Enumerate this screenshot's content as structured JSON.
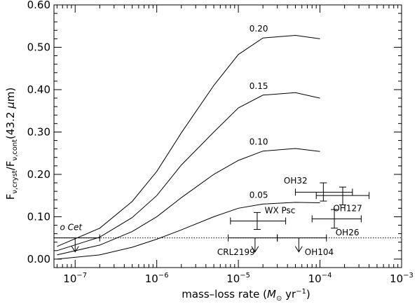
{
  "chart_data": {
    "type": "line",
    "xlabel": "mass–loss rate",
    "xlabel_unit_open": "(",
    "xlabel_unit_msun": "M",
    "xlabel_unit_sun": "⊙",
    "xlabel_unit_rest": " yr",
    "xlabel_unit_exp": "−1",
    "xlabel_unit_close": ")",
    "ylabel_main": "F",
    "ylabel_nu": "ν",
    "ylabel_cryst": ",cryst",
    "ylabel_slash": "/F",
    "ylabel_cont": ",cont",
    "ylabel_paren": "(43.2 ",
    "ylabel_mu": "μ",
    "ylabel_m": "m)",
    "x_scale": "log",
    "xlim": [
      5.5e-08,
      0.001
    ],
    "ylim": [
      -0.02,
      0.6
    ],
    "x_ticks": [
      {
        "value": 1e-07,
        "base": "10",
        "exp": "−7"
      },
      {
        "value": 1e-06,
        "base": "10",
        "exp": "−6"
      },
      {
        "value": 1e-05,
        "base": "10",
        "exp": "−5"
      },
      {
        "value": 0.0001,
        "base": "10",
        "exp": "−4"
      },
      {
        "value": 0.001,
        "base": "10",
        "exp": "−3"
      }
    ],
    "y_ticks": [
      0.0,
      0.1,
      0.2,
      0.3,
      0.4,
      0.5,
      0.6
    ],
    "y_tick_labels": [
      "0.00",
      "0.10",
      "0.20",
      "0.30",
      "0.40",
      "0.50",
      "0.60"
    ],
    "series": [
      {
        "name": "0.05",
        "x": [
          6e-08,
          2e-07,
          5e-07,
          1e-06,
          2e-06,
          5e-06,
          1e-05,
          2e-05,
          5e-05,
          0.0001
        ],
        "y": [
          0.0,
          0.01,
          0.028,
          0.047,
          0.069,
          0.1,
          0.12,
          0.13,
          0.134,
          0.133
        ]
      },
      {
        "name": "0.10",
        "x": [
          6e-08,
          2e-07,
          5e-07,
          1e-06,
          2e-06,
          5e-06,
          1e-05,
          2e-05,
          5e-05,
          0.0001
        ],
        "y": [
          0.01,
          0.033,
          0.065,
          0.1,
          0.145,
          0.2,
          0.233,
          0.255,
          0.261,
          0.254
        ]
      },
      {
        "name": "0.15",
        "x": [
          6e-08,
          2e-07,
          5e-07,
          1e-06,
          2e-06,
          5e-06,
          1e-05,
          2e-05,
          5e-05,
          0.0001
        ],
        "y": [
          0.02,
          0.052,
          0.098,
          0.15,
          0.222,
          0.3,
          0.357,
          0.387,
          0.393,
          0.38
        ]
      },
      {
        "name": "0.20",
        "x": [
          6e-08,
          2e-07,
          5e-07,
          1e-06,
          2e-06,
          5e-06,
          1e-05,
          2e-05,
          5e-05,
          0.0001
        ],
        "y": [
          0.03,
          0.073,
          0.136,
          0.207,
          0.298,
          0.41,
          0.483,
          0.522,
          0.528,
          0.52
        ]
      }
    ],
    "reference_line": {
      "y": 0.05,
      "style": "dotted"
    },
    "sources": [
      {
        "name": "o Cet",
        "x": 1e-07,
        "xerr": [
          5.5e-08,
          2e-07
        ],
        "upper_limit": true,
        "label_x": 6.5e-08,
        "label_y": 0.075
      },
      {
        "name": "WX Psc",
        "x": 1.7e-05,
        "y": 0.09,
        "xerr": [
          8e-06,
          3.8e-05
        ],
        "yerr": [
          0.07,
          0.11
        ],
        "label_x": 2.1e-05,
        "label_y": 0.115
      },
      {
        "name": "OH32",
        "x": 0.00011,
        "y": 0.158,
        "xerr": [
          5e-05,
          0.00025
        ],
        "yerr": [
          0.137,
          0.18
        ],
        "label_x": 3.6e-05,
        "label_y": 0.185
      },
      {
        "name": "OH127",
        "x": 0.00019,
        "y": 0.15,
        "xerr": [
          9e-05,
          0.0004
        ],
        "yerr": [
          0.128,
          0.17
        ],
        "label_x": 0.000145,
        "label_y": 0.12
      },
      {
        "name": "OH26",
        "x": 0.00015,
        "y": 0.095,
        "xerr": [
          8e-05,
          0.00032
        ],
        "yerr": [
          0.073,
          0.117
        ],
        "label_x": 0.000155,
        "label_y": 0.063
      },
      {
        "name": "CRL2199",
        "x": 1.6e-05,
        "xerr": [
          7.5e-06,
          3e-05
        ],
        "upper_limit": true,
        "label_x": 5.5e-06,
        "label_y": 0.016
      },
      {
        "name": "OH104",
        "x": 5.5e-05,
        "xerr": [
          3e-05,
          0.00012
        ],
        "upper_limit": true,
        "label_x": 6.5e-05,
        "label_y": 0.016
      }
    ]
  }
}
